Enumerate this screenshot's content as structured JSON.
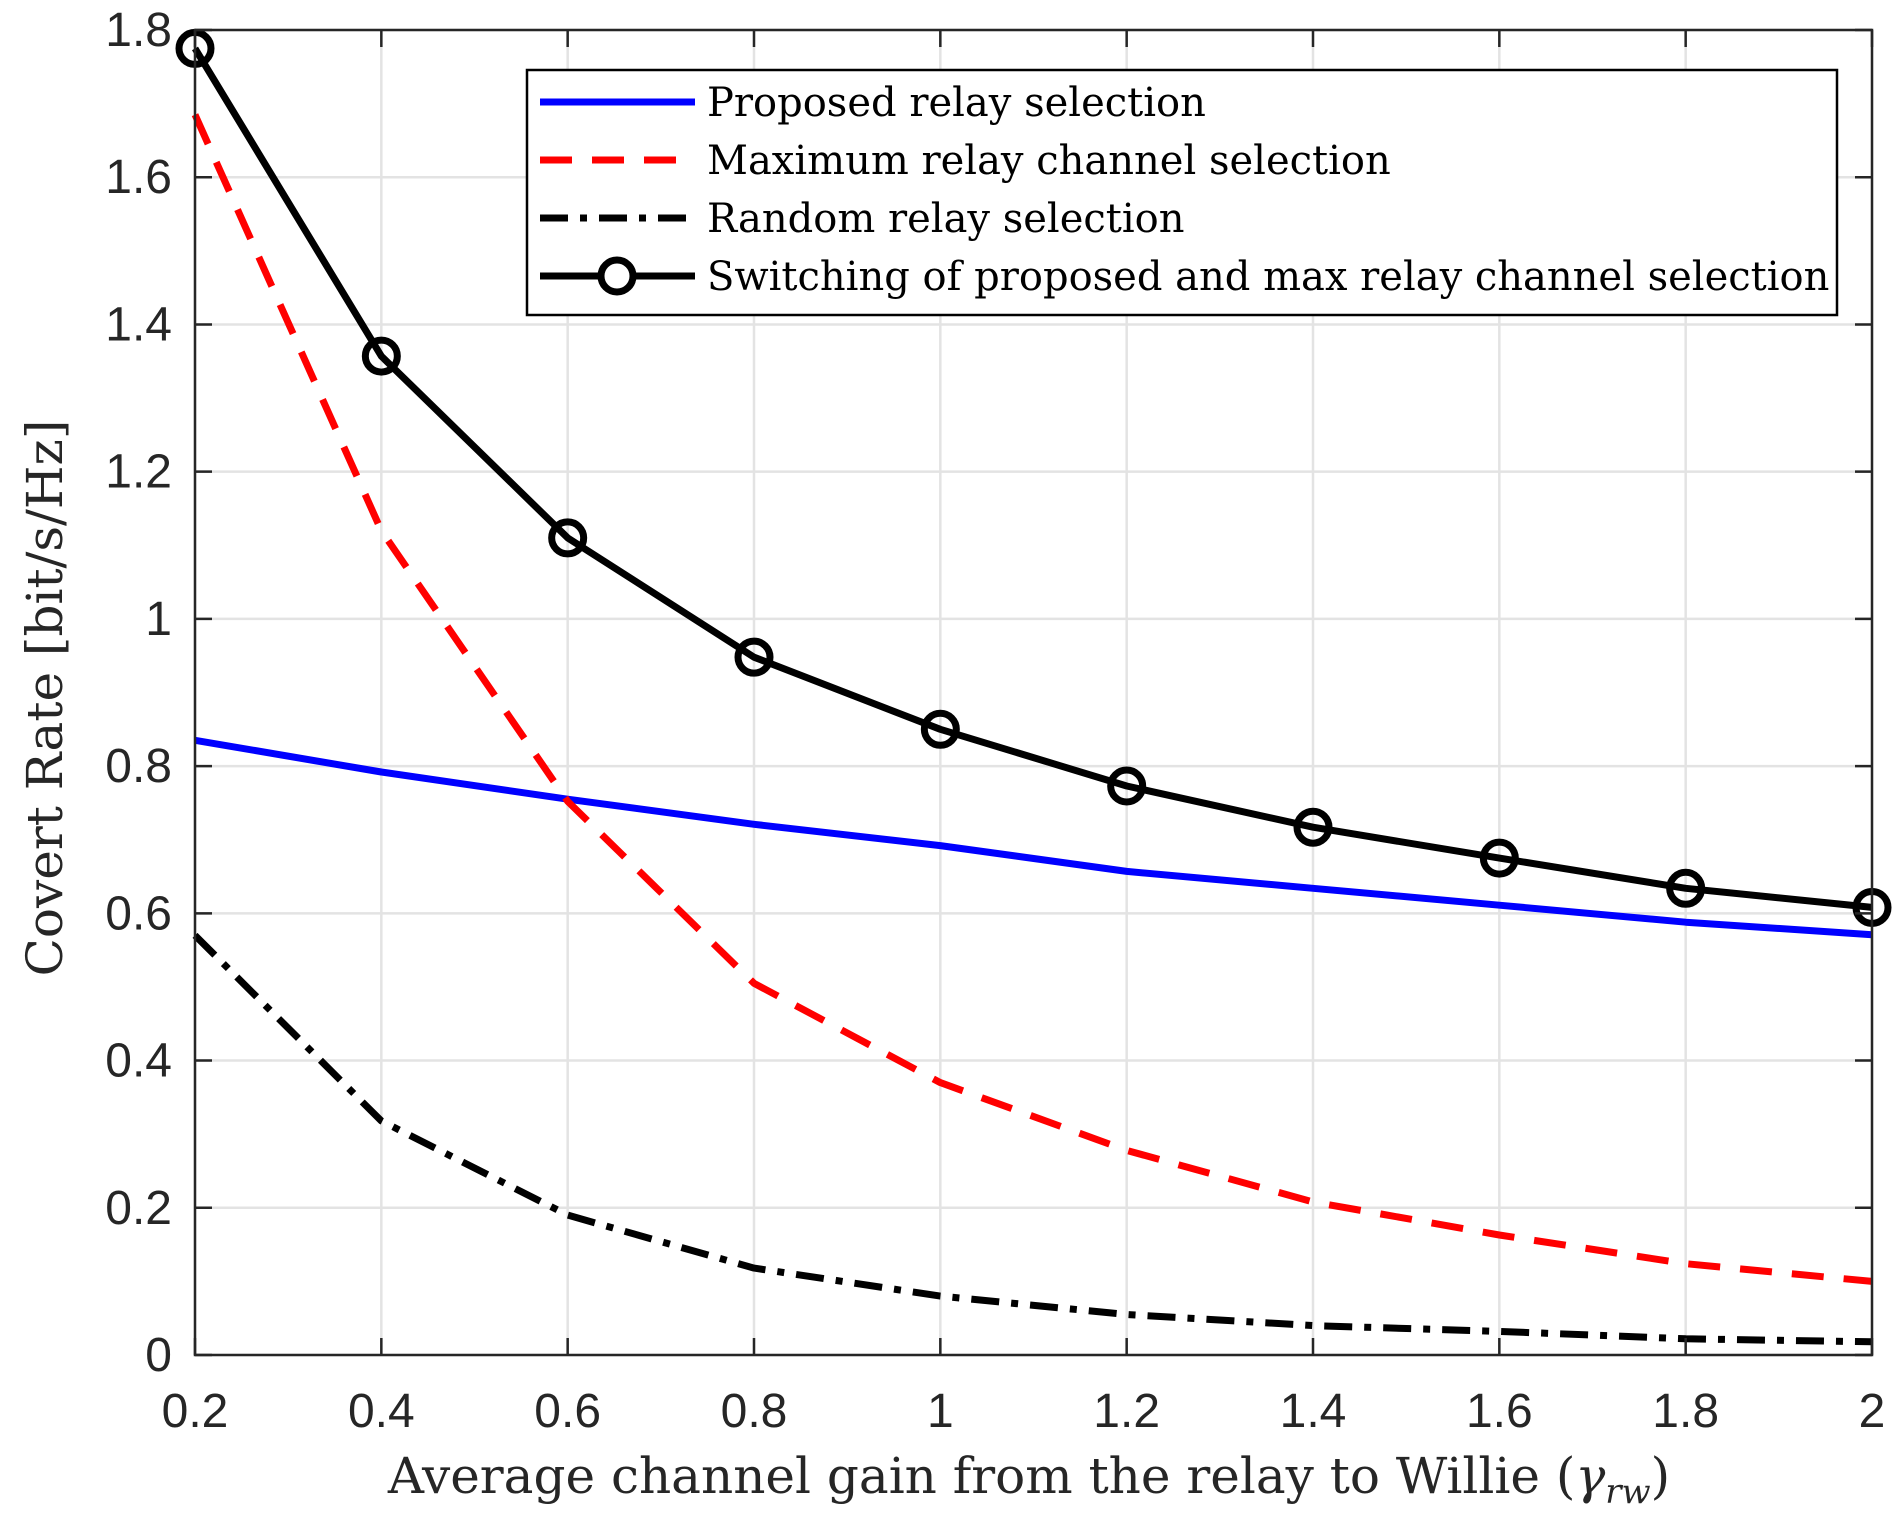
{
  "chart_data": {
    "type": "line",
    "xlabel": "Average channel gain from the relay to Willie (",
    "xlabel_symbol": "γ",
    "xlabel_subscript": "rw",
    "xlabel_close": ")",
    "ylabel": "Covert Rate [bit/s/Hz]",
    "xlim": [
      0.2,
      2
    ],
    "ylim": [
      0,
      1.8
    ],
    "xticks": [
      0.2,
      0.4,
      0.6,
      0.8,
      1,
      1.2,
      1.4,
      1.6,
      1.8,
      2
    ],
    "xtick_labels": [
      "0.2",
      "0.4",
      "0.6",
      "0.8",
      "1",
      "1.2",
      "1.4",
      "1.6",
      "1.8",
      "2"
    ],
    "yticks": [
      0,
      0.2,
      0.4,
      0.6,
      0.8,
      1,
      1.2,
      1.4,
      1.6,
      1.8
    ],
    "ytick_labels": [
      "0",
      "0.2",
      "0.4",
      "0.6",
      "0.8",
      "1",
      "1.2",
      "1.4",
      "1.6",
      "1.8"
    ],
    "grid": true,
    "legend_position": "top-right",
    "x": [
      0.2,
      0.4,
      0.6,
      0.8,
      1.0,
      1.2,
      1.4,
      1.6,
      1.8,
      2.0
    ],
    "series": [
      {
        "name": "Proposed relay selection",
        "color": "#0000ff",
        "style": "solid",
        "marker": "none",
        "values": [
          0.835,
          0.792,
          0.755,
          0.721,
          0.692,
          0.657,
          0.634,
          0.611,
          0.588,
          0.571
        ]
      },
      {
        "name": "Maximum relay channel selection",
        "color": "#ff0000",
        "style": "dashed",
        "marker": "none",
        "values": [
          1.685,
          1.12,
          0.752,
          0.505,
          0.37,
          0.278,
          0.208,
          0.163,
          0.124,
          0.1
        ]
      },
      {
        "name": "Random relay selection",
        "color": "#000000",
        "style": "dashdot",
        "marker": "none",
        "values": [
          0.57,
          0.318,
          0.19,
          0.118,
          0.08,
          0.055,
          0.04,
          0.032,
          0.022,
          0.018
        ]
      },
      {
        "name": "Switching of proposed and max relay channel selection",
        "color": "#000000",
        "style": "solid",
        "marker": "circle",
        "values": [
          1.775,
          1.357,
          1.11,
          0.948,
          0.85,
          0.773,
          0.717,
          0.675,
          0.634,
          0.608
        ]
      }
    ]
  }
}
